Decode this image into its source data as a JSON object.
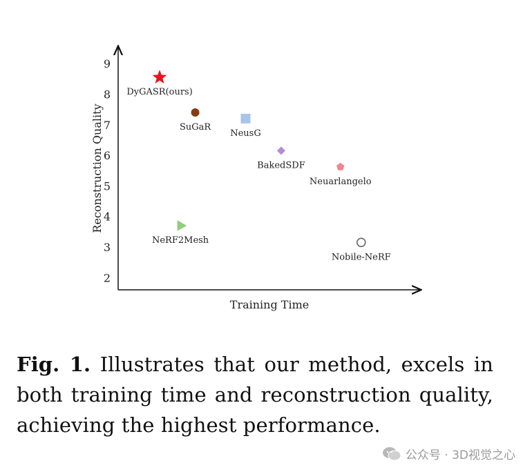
{
  "chart_data": {
    "type": "scatter",
    "xlabel": "Training Time",
    "ylabel": "Reconstruction Quality",
    "ylim": [
      1.6,
      9.5
    ],
    "xlim": [
      0,
      10
    ],
    "y_ticks": [
      "2",
      "3",
      "4",
      "5",
      "6",
      "7",
      "8",
      "9"
    ],
    "points": [
      {
        "label": "DyGASR(ours)",
        "x": 1.4,
        "y": 8.55,
        "marker": "star",
        "color": "#e8141c"
      },
      {
        "label": "SuGaR",
        "x": 2.6,
        "y": 7.4,
        "marker": "circle",
        "color": "#8b3a0f"
      },
      {
        "label": "NeusG",
        "x": 4.3,
        "y": 7.2,
        "marker": "square",
        "color": "#a9c4ea"
      },
      {
        "label": "BakedSDF",
        "x": 5.5,
        "y": 6.15,
        "marker": "diamond",
        "color": "#b58ad8"
      },
      {
        "label": "Neuarlangelo",
        "x": 7.5,
        "y": 5.62,
        "marker": "pentagon",
        "color": "#f0868e"
      },
      {
        "label": "NeRF2Mesh",
        "x": 2.1,
        "y": 3.7,
        "marker": "triangle",
        "color": "#93cc7a"
      },
      {
        "label": "Nobile-NeRF",
        "x": 8.2,
        "y": 3.15,
        "marker": "open-circle",
        "color": "#666666"
      }
    ]
  },
  "caption": {
    "fig_label": "Fig. 1.",
    "text": " Illustrates that our method, excels in both training time and reconstruction quality, achieving the highest performance."
  },
  "watermark": {
    "text": "公众号 · 3D视觉之心",
    "icon": "wechat-icon"
  }
}
